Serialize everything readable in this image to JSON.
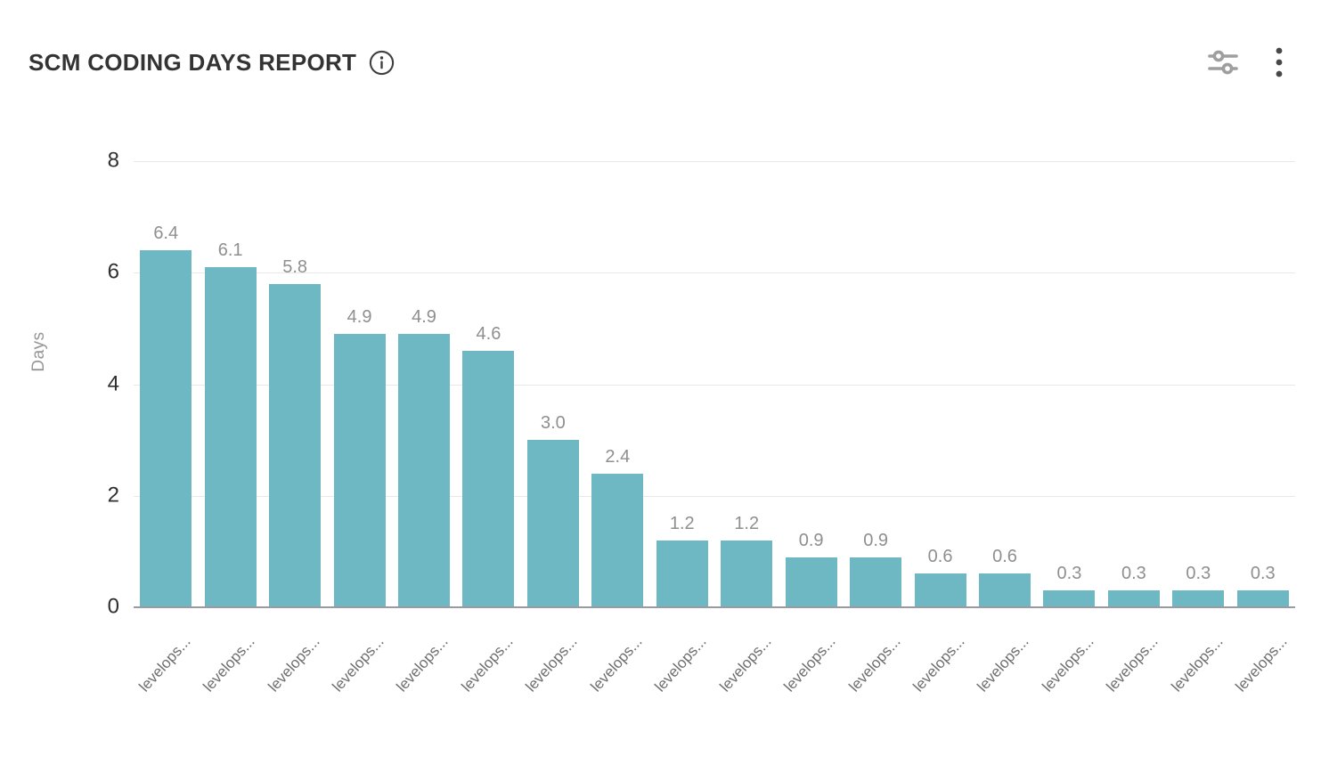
{
  "header": {
    "title": "SCM CODING DAYS REPORT",
    "icons": {
      "info": "info-circle",
      "filter": "filter-sliders",
      "menu": "kebab-menu"
    }
  },
  "chart_data": {
    "type": "bar",
    "title": "SCM CODING DAYS REPORT",
    "xlabel": "",
    "ylabel": "Days",
    "ylim": [
      0,
      8
    ],
    "yticks": [
      0,
      2,
      4,
      6,
      8
    ],
    "grid": true,
    "legend": false,
    "bar_color": "#6db8c3",
    "categories": [
      "levelops...",
      "levelops...",
      "levelops...",
      "levelops...",
      "levelops...",
      "levelops...",
      "levelops...",
      "levelops...",
      "levelops...",
      "levelops...",
      "levelops...",
      "levelops...",
      "levelops...",
      "levelops...",
      "levelops...",
      "levelops...",
      "levelops...",
      "levelops..."
    ],
    "values": [
      6.4,
      6.1,
      5.8,
      4.9,
      4.9,
      4.6,
      3.0,
      2.4,
      1.2,
      1.2,
      0.9,
      0.9,
      0.6,
      0.6,
      0.3,
      0.3,
      0.3,
      0.3
    ],
    "value_labels": [
      "6.4",
      "6.1",
      "5.8",
      "4.9",
      "4.9",
      "4.6",
      "3.0",
      "2.4",
      "1.2",
      "1.2",
      "0.9",
      "0.9",
      "0.6",
      "0.6",
      "0.3",
      "0.3",
      "0.3",
      "0.3"
    ]
  }
}
